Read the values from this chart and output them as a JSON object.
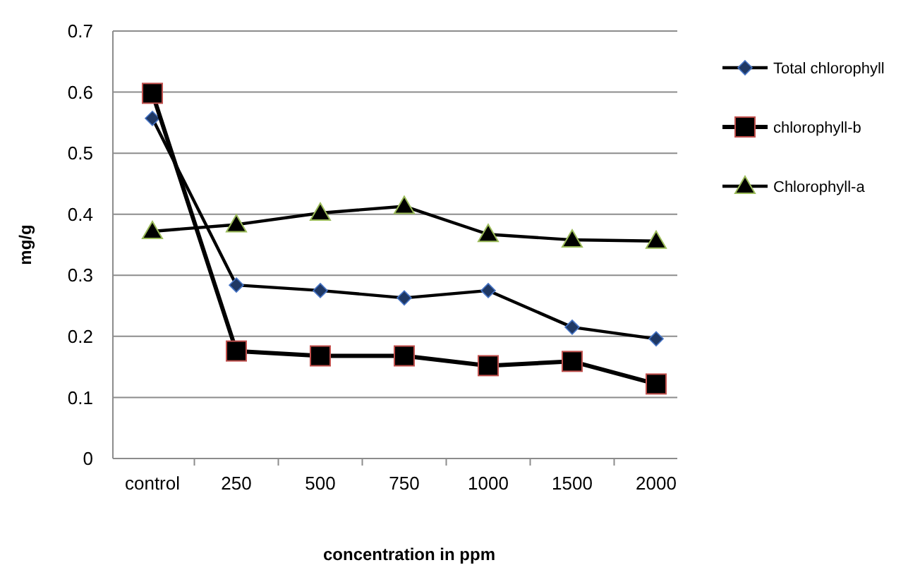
{
  "chart_data": {
    "type": "line",
    "xlabel": "concentration in ppm",
    "ylabel": "mg/g",
    "categories": [
      "control",
      "250",
      "500",
      "750",
      "1000",
      "1500",
      "2000"
    ],
    "series": [
      {
        "name": "Total chlorophyll",
        "color": "#1f3864",
        "marker": "diamond",
        "values": [
          0.557,
          0.284,
          0.275,
          0.263,
          0.275,
          0.215,
          0.196
        ]
      },
      {
        "name": "chlorophyll-b",
        "color": "#000000",
        "marker": "square",
        "values": [
          0.598,
          0.176,
          0.168,
          0.168,
          0.152,
          0.159,
          0.122
        ]
      },
      {
        "name": "Chlorophyll-a",
        "color": "#000000",
        "marker": "triangle",
        "values": [
          0.372,
          0.383,
          0.402,
          0.413,
          0.367,
          0.358,
          0.356
        ]
      }
    ],
    "ylim": [
      0,
      0.7
    ],
    "yticks": [
      0,
      0.1,
      0.2,
      0.3,
      0.4,
      0.5,
      0.6,
      0.7
    ],
    "grid": "y",
    "legend": "right"
  }
}
